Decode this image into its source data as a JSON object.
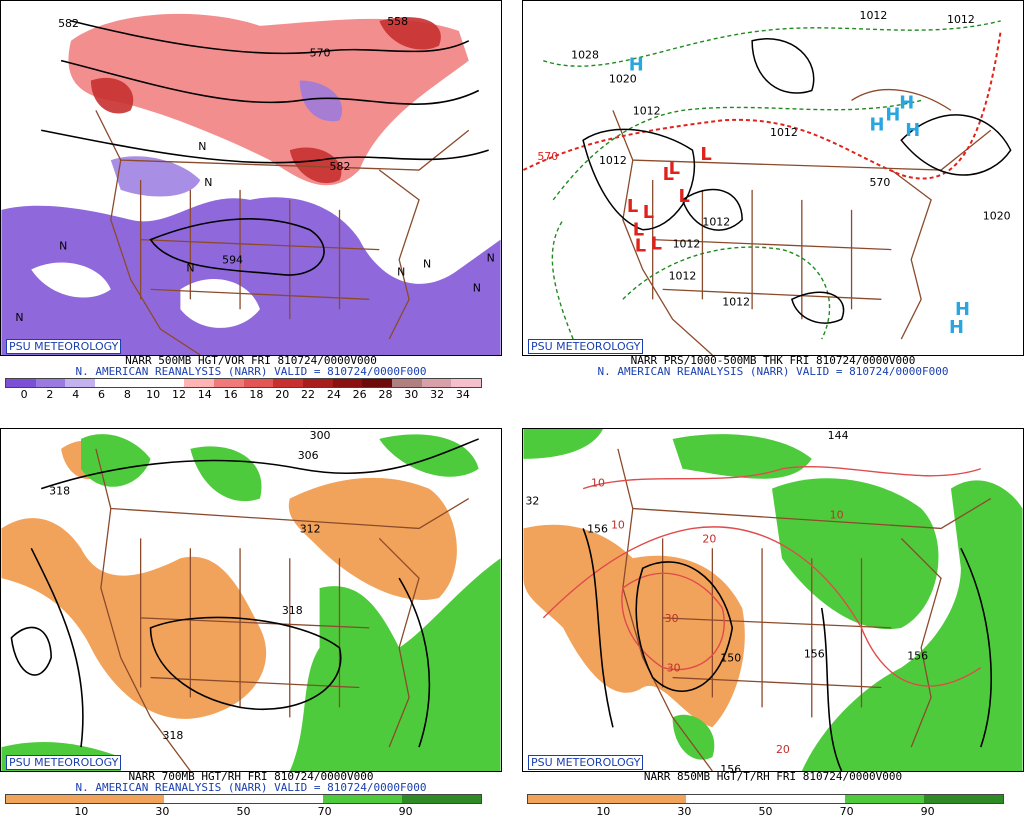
{
  "brand": "PSU METEOROLOGY",
  "colors": {
    "vort_scale": [
      "#7b4fd6",
      "#9a7ae0",
      "#c3b2ee",
      "#ffffff",
      "#ffffff",
      "#ffffff",
      "#ffb3b3",
      "#f07a7a",
      "#e25656",
      "#c83030",
      "#a81c1c",
      "#8b1010",
      "#6e0a0a",
      "#b08080",
      "#d8a0a8",
      "#f5c0cc"
    ],
    "rh_dry": "#f2a35b",
    "rh_moist": "#4ecb3c",
    "border": "#8b4a2b",
    "contour": "#000000",
    "thk_line": "#1f8a1f",
    "thk_570": "#e0221b",
    "high": "#29a6e0",
    "low": "#e0221b"
  },
  "panels": [
    {
      "id": "500mb",
      "caption_line1": "NARR 500MB HGT/VOR FRI 810724/0000V000",
      "caption_line2": "N. AMERICAN REANALYSIS (NARR) VALID = 810724/0000F000",
      "scale_ticks": [
        "0",
        "2",
        "4",
        "6",
        "8",
        "10",
        "12",
        "14",
        "16",
        "18",
        "20",
        "22",
        "24",
        "26",
        "28",
        "30",
        "32",
        "34"
      ],
      "contour_labels": [
        "582",
        "558",
        "570",
        "582",
        "594"
      ],
      "vort_labels": [
        "N",
        "N",
        "N",
        "N",
        "N",
        "N",
        "N",
        "N",
        "N"
      ]
    },
    {
      "id": "thk",
      "caption_line1": "NARR PRS/1000-500MB THK FRI 810724/0000V000",
      "caption_line2": "N. AMERICAN REANALYSIS (NARR) VALID = 810724/0000F000",
      "contour_labels": [
        "1012",
        "1012",
        "1028",
        "1020",
        "1012",
        "1012",
        "1012",
        "1012",
        "1012",
        "1012",
        "1012",
        "1020"
      ],
      "thk_labels": [
        "570",
        "570"
      ],
      "highs": [
        "H",
        "H",
        "H",
        "H",
        "H",
        "H",
        "H"
      ],
      "lows": [
        "L",
        "L",
        "L",
        "L",
        "L",
        "L",
        "L",
        "L",
        "L"
      ]
    },
    {
      "id": "700mb",
      "caption_line1": "NARR 700MB HGT/RH FRI 810724/0000V000",
      "caption_line2": "N. AMERICAN REANALYSIS (NARR) VALID = 810724/0000F000",
      "scale_ticks": [
        "10",
        "30",
        "50",
        "70",
        "90"
      ],
      "contour_labels": [
        "300",
        "306",
        "312",
        "318",
        "318",
        "318"
      ]
    },
    {
      "id": "850mb",
      "caption_line1": "NARR 850MB HGT/T/RH FRI 810724/0000V000",
      "scale_ticks": [
        "10",
        "30",
        "50",
        "70",
        "90"
      ],
      "contour_labels": [
        "144",
        "32",
        "156",
        "150",
        "156",
        "156",
        "156"
      ],
      "temp_labels": [
        "10",
        "10",
        "20",
        "30",
        "30",
        "10",
        "20"
      ]
    }
  ]
}
